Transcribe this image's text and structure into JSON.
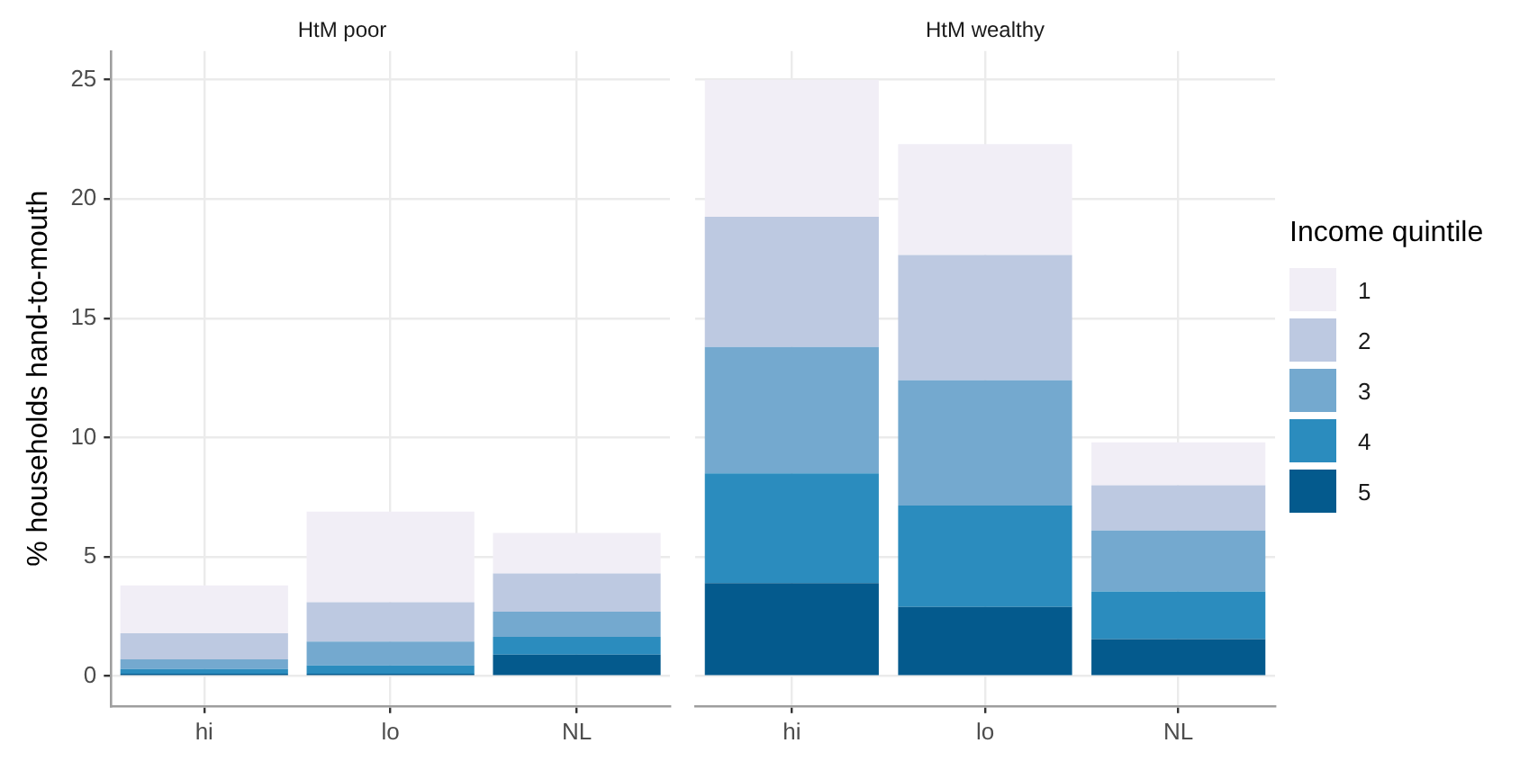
{
  "chart_data": [
    {
      "type": "bar",
      "title": "HtM poor",
      "ylabel": "% households hand-to-mouth",
      "categories": [
        "hi",
        "lo",
        "NL"
      ],
      "stacked": true,
      "ylim": [
        -1.25,
        26.2
      ],
      "yticks": [
        0,
        5,
        10,
        15,
        20,
        25
      ],
      "grid": true,
      "legend": "right",
      "series": [
        {
          "name": "5",
          "color": "#045a8d",
          "values": [
            0.1,
            0.1,
            0.9
          ]
        },
        {
          "name": "4",
          "color": "#2b8cbe",
          "values": [
            0.2,
            0.35,
            0.75
          ]
        },
        {
          "name": "3",
          "color": "#74a9cf",
          "values": [
            0.4,
            1.0,
            1.05
          ]
        },
        {
          "name": "2",
          "color": "#bdc9e1",
          "values": [
            1.1,
            1.65,
            1.6
          ]
        },
        {
          "name": "1",
          "color": "#f1eef6",
          "values": [
            2.0,
            3.8,
            1.7
          ]
        }
      ]
    },
    {
      "type": "bar",
      "title": "HtM wealthy",
      "legend_title": "Income quintile",
      "categories": [
        "hi",
        "lo",
        "NL"
      ],
      "stacked": true,
      "ylim": [
        -1.25,
        26.2
      ],
      "yticks": [
        0,
        5,
        10,
        15,
        20,
        25
      ],
      "grid": true,
      "legend": "right",
      "tick_labels": "x",
      "series": [
        {
          "name": "5",
          "color": "#045a8d",
          "values": [
            3.9,
            2.9,
            1.55
          ]
        },
        {
          "name": "4",
          "color": "#2b8cbe",
          "values": [
            4.6,
            4.25,
            2.0
          ]
        },
        {
          "name": "3",
          "color": "#74a9cf",
          "values": [
            5.3,
            5.25,
            2.55
          ]
        },
        {
          "name": "2",
          "color": "#bdc9e1",
          "values": [
            5.45,
            5.25,
            1.9
          ]
        },
        {
          "name": "1",
          "color": "#f1eef6",
          "values": [
            5.75,
            4.65,
            1.8
          ]
        }
      ]
    }
  ]
}
